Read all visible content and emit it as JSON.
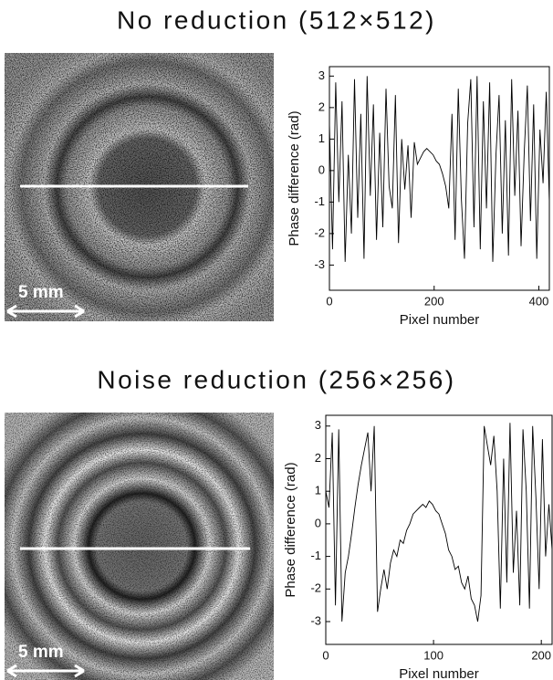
{
  "chart_data": [
    {
      "type": "line",
      "title": "No reduction (512×512)",
      "xlabel": "Pixel number",
      "ylabel": "Phase difference (rad)",
      "color": "#000000",
      "xlim": [
        0,
        420
      ],
      "ylim": [
        -3.8,
        3.3
      ],
      "xticks": [
        0,
        200,
        400
      ],
      "yticks": [
        -3,
        -2,
        -1,
        0,
        1,
        2,
        3
      ],
      "x": [
        0,
        6,
        12,
        18,
        24,
        30,
        36,
        42,
        48,
        54,
        60,
        66,
        72,
        78,
        84,
        90,
        96,
        102,
        108,
        114,
        120,
        126,
        132,
        138,
        144,
        150,
        156,
        162,
        168,
        174,
        180,
        186,
        192,
        198,
        204,
        210,
        216,
        222,
        228,
        234,
        240,
        246,
        252,
        258,
        264,
        270,
        276,
        282,
        288,
        294,
        300,
        306,
        312,
        318,
        324,
        330,
        336,
        342,
        348,
        354,
        360,
        366,
        372,
        378,
        384,
        390,
        396,
        402,
        408,
        414,
        420
      ],
      "values": [
        1.5,
        -2.5,
        2.8,
        -1.0,
        2.2,
        -2.9,
        0.5,
        -2.0,
        2.9,
        -1.5,
        1.8,
        -2.8,
        3.0,
        -0.8,
        2.1,
        -2.2,
        1.2,
        -1.8,
        2.6,
        -0.5,
        -1.2,
        2.4,
        -2.3,
        1.0,
        -0.6,
        0.8,
        -1.5,
        0.9,
        0.2,
        0.4,
        0.6,
        0.7,
        0.6,
        0.5,
        0.3,
        0.2,
        -0.1,
        -0.5,
        -1.2,
        1.8,
        -2.2,
        2.6,
        -0.9,
        -2.8,
        1.5,
        2.9,
        -1.8,
        3.0,
        -2.5,
        2.2,
        -1.2,
        2.8,
        -2.9,
        0.5,
        2.4,
        -2.0,
        1.6,
        -2.7,
        2.9,
        -0.8,
        1.9,
        -2.4,
        0.6,
        2.7,
        -1.6,
        2.1,
        -2.8,
        1.3,
        -0.4,
        2.5,
        -1.0
      ]
    },
    {
      "type": "line",
      "title": "Noise reduction (256×256)",
      "xlabel": "Pixel number",
      "ylabel": "Phase difference (rad)",
      "color": "#000000",
      "xlim": [
        0,
        210
      ],
      "ylim": [
        -3.7,
        3.33
      ],
      "xticks": [
        0,
        100,
        200
      ],
      "yticks": [
        -3,
        -2,
        -1,
        0,
        1,
        2,
        3
      ],
      "x": [
        0,
        3,
        6,
        9,
        12,
        15,
        18,
        21,
        24,
        27,
        30,
        33,
        36,
        39,
        42,
        45,
        48,
        51,
        54,
        57,
        60,
        63,
        66,
        69,
        72,
        75,
        78,
        81,
        84,
        87,
        90,
        93,
        96,
        99,
        102,
        105,
        108,
        111,
        114,
        117,
        120,
        123,
        126,
        129,
        132,
        135,
        138,
        141,
        144,
        147,
        150,
        153,
        156,
        159,
        162,
        165,
        168,
        171,
        174,
        177,
        180,
        183,
        186,
        189,
        192,
        195,
        198,
        201,
        204,
        207,
        210
      ],
      "values": [
        1.0,
        0.5,
        2.8,
        -2.5,
        2.9,
        -3.0,
        -1.5,
        -1.0,
        -0.3,
        0.5,
        1.2,
        1.8,
        2.3,
        2.8,
        1.0,
        3.0,
        -2.7,
        -2.0,
        -1.4,
        -2.0,
        -1.2,
        -0.8,
        -1.0,
        -0.5,
        -0.6,
        -0.2,
        0.0,
        0.3,
        0.4,
        0.5,
        0.6,
        0.5,
        0.7,
        0.6,
        0.4,
        0.3,
        0.0,
        -0.3,
        -0.8,
        -1.0,
        -1.4,
        -1.3,
        -1.8,
        -2.0,
        -1.6,
        -2.3,
        -2.5,
        -3.0,
        -2.2,
        3.0,
        2.4,
        1.8,
        2.7,
        1.0,
        -2.6,
        2.0,
        -1.8,
        3.1,
        -1.5,
        0.4,
        -2.5,
        2.9,
        1.0,
        -2.6,
        3.0,
        0.8,
        -2.0,
        2.6,
        -1.0,
        0.6,
        -0.8
      ]
    }
  ],
  "images": [
    {
      "scale_label": "5 mm"
    },
    {
      "scale_label": "5 mm"
    }
  ]
}
